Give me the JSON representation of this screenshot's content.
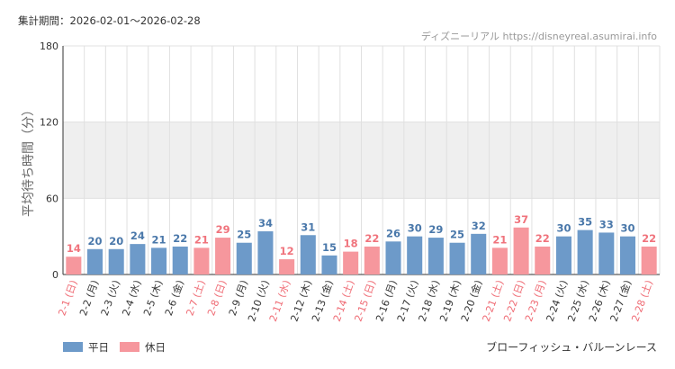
{
  "header": {
    "period": "集計期間：2026-02-01～2026-02-28",
    "source": "ディズニーリアル https://disneyreal.asumirai.info"
  },
  "footer": {
    "attraction": "ブローフィッシュ・バルーンレース"
  },
  "colors": {
    "weekday": "#6d9ac9",
    "holiday": "#f6979d",
    "weekday_text": "#4a78aa",
    "holiday_text": "#f0737c",
    "weekday_tick": "#333333",
    "holiday_tick": "#ef6a73",
    "band": "#efefef",
    "grid": "#e0e0e0",
    "axis": "#333333"
  },
  "chart_data": {
    "type": "bar",
    "title": "",
    "xlabel": "",
    "ylabel": "平均待ち時間（分）",
    "ylim": [
      0,
      180
    ],
    "yticks": [
      0,
      60,
      120,
      180
    ],
    "grid": true,
    "highlight_band": [
      60,
      120
    ],
    "legend": {
      "placement": "bottom-left",
      "entries": [
        {
          "label": "平日",
          "color": "#6d9ac9"
        },
        {
          "label": "休日",
          "color": "#f6979d"
        }
      ]
    },
    "categories": [
      "2-1 (日)",
      "2-2 (月)",
      "2-3 (火)",
      "2-4 (水)",
      "2-5 (木)",
      "2-6 (金)",
      "2-7 (土)",
      "2-8 (日)",
      "2-9 (月)",
      "2-10 (火)",
      "2-11 (水)",
      "2-12 (木)",
      "2-13 (金)",
      "2-14 (土)",
      "2-15 (日)",
      "2-16 (月)",
      "2-17 (火)",
      "2-18 (水)",
      "2-19 (木)",
      "2-20 (金)",
      "2-21 (土)",
      "2-22 (日)",
      "2-23 (月)",
      "2-24 (火)",
      "2-25 (水)",
      "2-26 (木)",
      "2-27 (金)",
      "2-28 (土)"
    ],
    "values": [
      14,
      20,
      20,
      24,
      21,
      22,
      21,
      29,
      25,
      34,
      12,
      31,
      15,
      18,
      22,
      26,
      30,
      29,
      25,
      32,
      21,
      37,
      22,
      30,
      35,
      33,
      30,
      22
    ],
    "day_type": [
      "休日",
      "平日",
      "平日",
      "平日",
      "平日",
      "平日",
      "休日",
      "休日",
      "平日",
      "平日",
      "休日",
      "平日",
      "平日",
      "休日",
      "休日",
      "平日",
      "平日",
      "平日",
      "平日",
      "平日",
      "休日",
      "休日",
      "休日",
      "平日",
      "平日",
      "平日",
      "平日",
      "休日"
    ]
  }
}
